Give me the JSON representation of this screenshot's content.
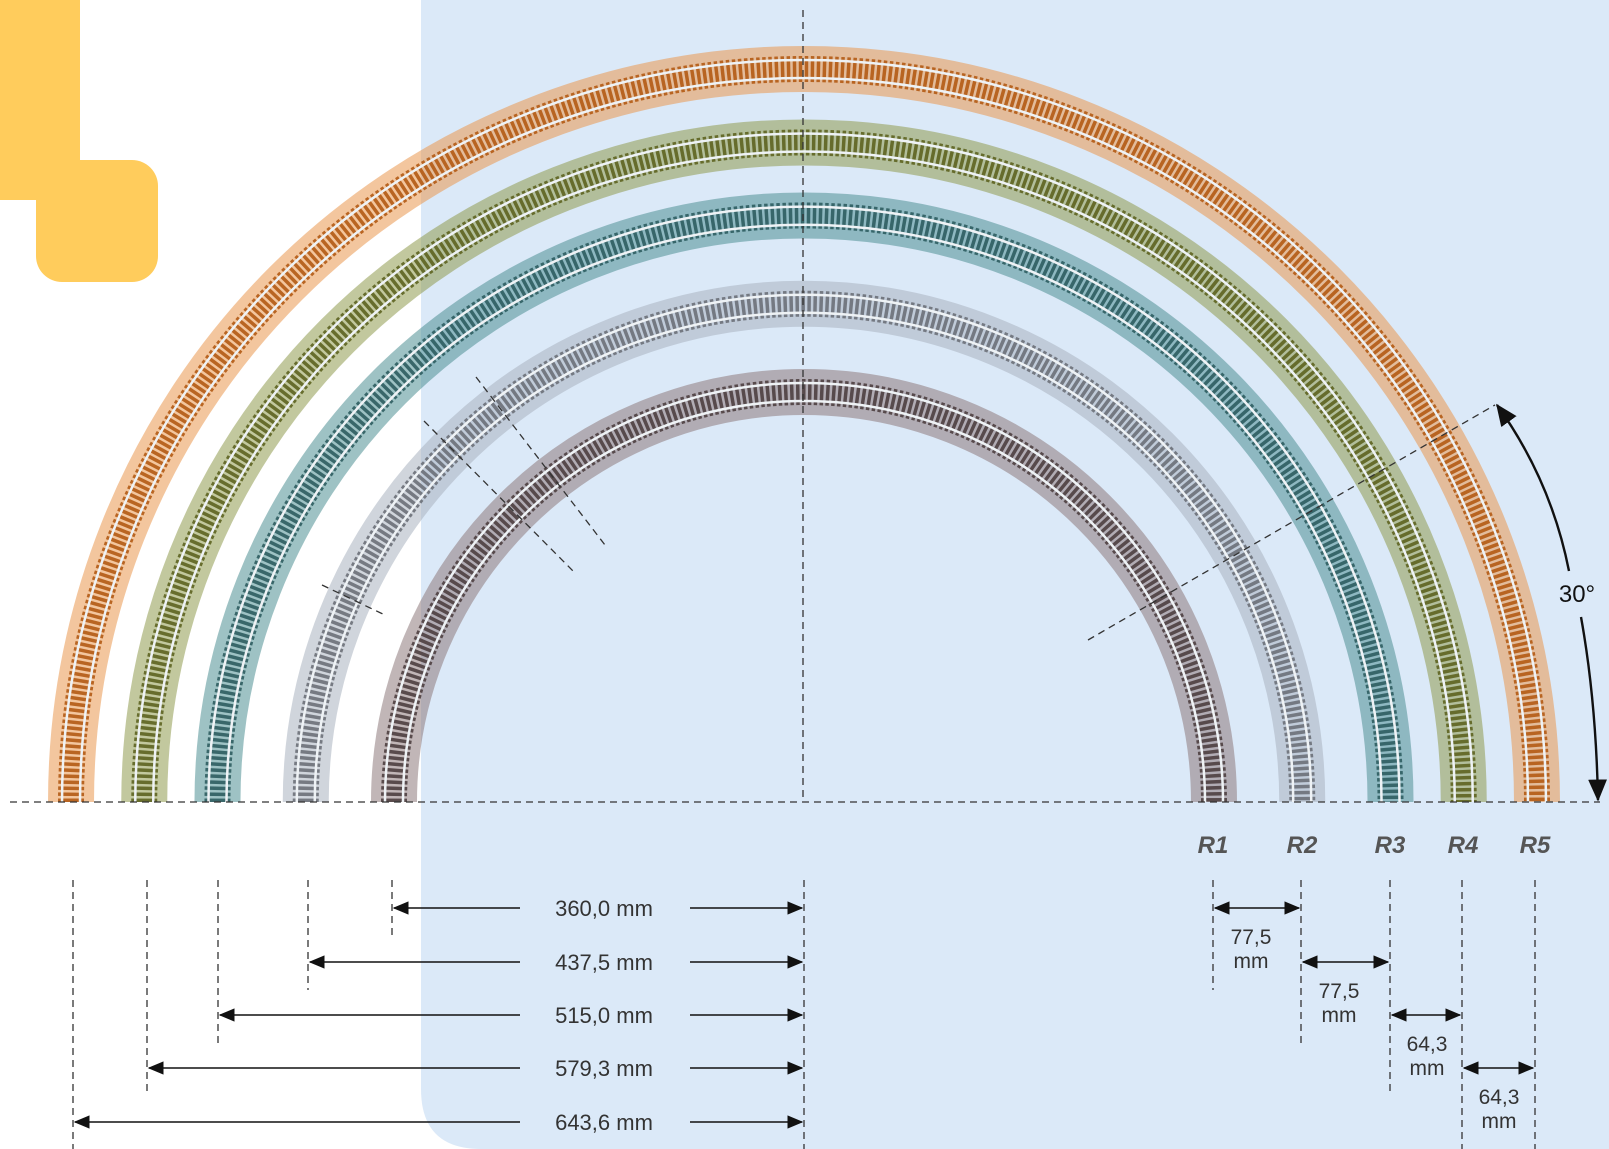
{
  "colors": {
    "background_panel": "#dbe9f8",
    "accent_shape": "#ffcc5c",
    "track_bands": [
      "#8e7a7c",
      "#a9b3bf",
      "#4f8f93",
      "#8f9a4f",
      "#e9974e"
    ],
    "sleepers": [
      "#4e3f40",
      "#6c7078",
      "#2d5d60",
      "#5d6320",
      "#b35a14"
    ],
    "line": "#222222"
  },
  "angle_label": "30°",
  "tracks": [
    {
      "id": "R1",
      "label": "R1",
      "radius_mm": 360.0,
      "radius_text": "360,0 mm"
    },
    {
      "id": "R2",
      "label": "R2",
      "radius_mm": 437.5,
      "radius_text": "437,5 mm"
    },
    {
      "id": "R3",
      "label": "R3",
      "radius_mm": 515.0,
      "radius_text": "515,0 mm"
    },
    {
      "id": "R4",
      "label": "R4",
      "radius_mm": 579.3,
      "radius_text": "579,3 mm"
    },
    {
      "id": "R5",
      "label": "R5",
      "radius_mm": 643.6,
      "radius_text": "643,6 mm"
    }
  ],
  "gaps": [
    {
      "value": "77,5",
      "unit": "mm"
    },
    {
      "value": "77,5",
      "unit": "mm"
    },
    {
      "value": "64,3",
      "unit": "mm"
    },
    {
      "value": "64,3",
      "unit": "mm"
    }
  ]
}
